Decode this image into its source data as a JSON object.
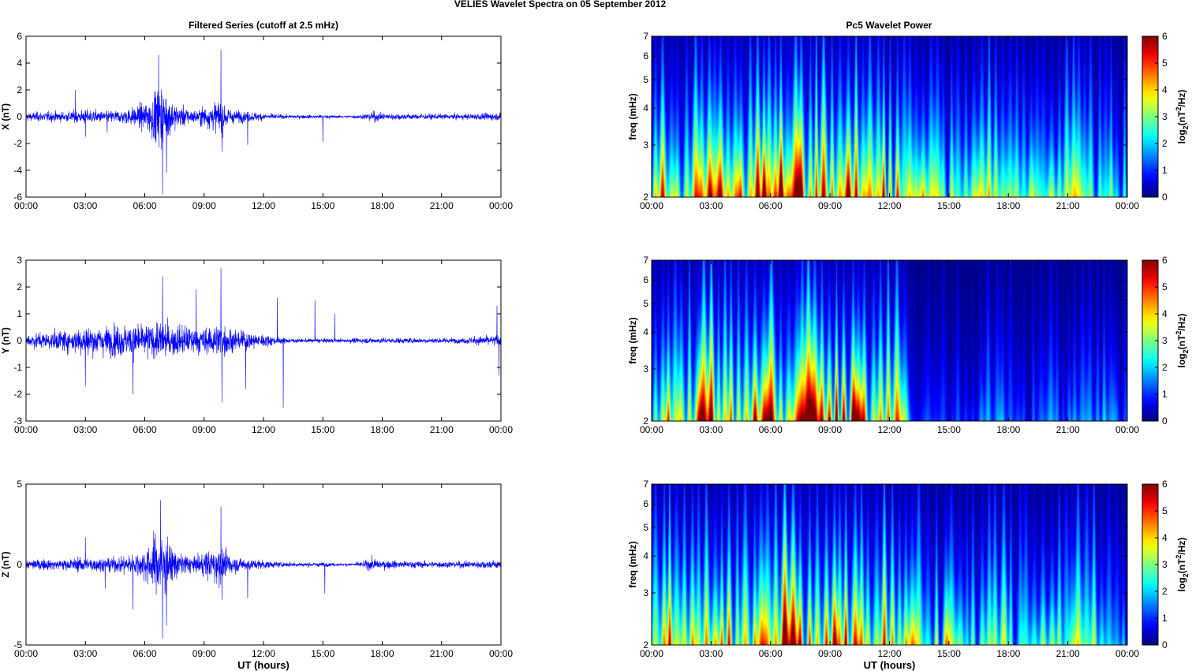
{
  "figure": {
    "title": "VELIES Wavelet Spectra on 05 September 2012",
    "left_column_title": "Filtered Series (cutoff at 2.5 mHz)",
    "right_column_title": "Pc5 Wavelet Power",
    "xlabel": "UT (hours)"
  },
  "colors": {
    "series_line": "#0000ff",
    "axes": "#000000",
    "background": "#ffffff"
  },
  "chart_data": [
    {
      "type": "line",
      "name": "x-series",
      "ylabel": "X (nT)",
      "ylim": [
        -6,
        6
      ],
      "yticks": [
        -6,
        -4,
        -2,
        0,
        2,
        4,
        6
      ],
      "xlim": [
        0,
        24
      ],
      "xticks": [
        "00:00",
        "03:00",
        "06:00",
        "09:00",
        "12:00",
        "15:00",
        "18:00",
        "21:00",
        "00:00"
      ],
      "envelope": [
        [
          0,
          0.45
        ],
        [
          1,
          0.55
        ],
        [
          2,
          0.55
        ],
        [
          3,
          0.8
        ],
        [
          4,
          0.6
        ],
        [
          5,
          0.8
        ],
        [
          6,
          1.5
        ],
        [
          6.8,
          3.5
        ],
        [
          7.5,
          1.4
        ],
        [
          8.5,
          0.7
        ],
        [
          9.8,
          1.8
        ],
        [
          10.5,
          0.7
        ],
        [
          12,
          0.4
        ],
        [
          13,
          0.2
        ],
        [
          14,
          0.2
        ],
        [
          15,
          0.2
        ],
        [
          16,
          0.1
        ],
        [
          17,
          0.25
        ],
        [
          17.5,
          0.6
        ],
        [
          18,
          0.4
        ],
        [
          20,
          0.3
        ],
        [
          22,
          0.3
        ],
        [
          23.5,
          0.4
        ],
        [
          24,
          0.4
        ]
      ],
      "spikes": [
        [
          6.7,
          4.6
        ],
        [
          6.9,
          -5.8
        ],
        [
          7.1,
          -4.2
        ],
        [
          9.85,
          5.0
        ],
        [
          9.9,
          -2.6
        ],
        [
          4.1,
          -1.2
        ],
        [
          3.0,
          -1.5
        ],
        [
          15.0,
          -1.9
        ],
        [
          2.5,
          2.0
        ],
        [
          11.2,
          -2.1
        ]
      ],
      "xlabel": ""
    },
    {
      "type": "line",
      "name": "y-series",
      "ylabel": "Y (nT)",
      "ylim": [
        -3,
        3
      ],
      "yticks": [
        -3,
        -2,
        -1,
        0,
        1,
        2,
        3
      ],
      "xlim": [
        0,
        24
      ],
      "xticks": [
        "00:00",
        "03:00",
        "06:00",
        "09:00",
        "12:00",
        "15:00",
        "18:00",
        "21:00",
        "00:00"
      ],
      "envelope": [
        [
          0,
          0.4
        ],
        [
          1,
          0.45
        ],
        [
          2,
          0.6
        ],
        [
          3,
          0.8
        ],
        [
          4,
          0.8
        ],
        [
          5,
          0.9
        ],
        [
          6,
          0.9
        ],
        [
          7,
          1.0
        ],
        [
          8,
          0.8
        ],
        [
          9,
          0.7
        ],
        [
          9.8,
          1.0
        ],
        [
          10.5,
          0.6
        ],
        [
          12,
          0.35
        ],
        [
          13,
          0.15
        ],
        [
          14,
          0.1
        ],
        [
          15,
          0.12
        ],
        [
          16,
          0.1
        ],
        [
          17,
          0.15
        ],
        [
          18,
          0.15
        ],
        [
          20,
          0.15
        ],
        [
          22,
          0.15
        ],
        [
          23.5,
          0.3
        ],
        [
          24,
          0.3
        ]
      ],
      "spikes": [
        [
          6.9,
          2.4
        ],
        [
          9.85,
          2.7
        ],
        [
          9.9,
          -2.3
        ],
        [
          8.6,
          1.9
        ],
        [
          13.0,
          -2.5
        ],
        [
          14.6,
          1.5
        ],
        [
          12.7,
          1.6
        ],
        [
          5.4,
          -2.0
        ],
        [
          3.0,
          -1.7
        ],
        [
          15.6,
          1.0
        ],
        [
          23.8,
          1.3
        ],
        [
          23.9,
          -1.3
        ],
        [
          11.1,
          -1.8
        ]
      ],
      "xlabel": ""
    },
    {
      "type": "line",
      "name": "z-series",
      "ylabel": "Z (nT)",
      "ylim": [
        -5,
        5
      ],
      "yticks": [
        -5,
        0,
        5
      ],
      "xlim": [
        0,
        24
      ],
      "xticks": [
        "00:00",
        "03:00",
        "06:00",
        "09:00",
        "12:00",
        "15:00",
        "18:00",
        "21:00",
        "00:00"
      ],
      "envelope": [
        [
          0,
          0.4
        ],
        [
          1,
          0.5
        ],
        [
          2,
          0.5
        ],
        [
          3,
          0.7
        ],
        [
          4,
          0.6
        ],
        [
          5,
          0.8
        ],
        [
          6,
          1.4
        ],
        [
          6.8,
          3.2
        ],
        [
          7.5,
          1.3
        ],
        [
          8.5,
          0.7
        ],
        [
          9.8,
          1.8
        ],
        [
          10.5,
          0.7
        ],
        [
          12,
          0.4
        ],
        [
          13,
          0.2
        ],
        [
          14,
          0.2
        ],
        [
          15,
          0.2
        ],
        [
          16,
          0.1
        ],
        [
          17,
          0.25
        ],
        [
          17.5,
          0.6
        ],
        [
          18,
          0.4
        ],
        [
          20,
          0.3
        ],
        [
          22,
          0.3
        ],
        [
          23.5,
          0.4
        ],
        [
          24,
          0.4
        ]
      ],
      "spikes": [
        [
          6.8,
          4.0
        ],
        [
          6.9,
          -4.6
        ],
        [
          7.1,
          -3.8
        ],
        [
          9.85,
          3.6
        ],
        [
          9.9,
          -2.2
        ],
        [
          3.0,
          1.7
        ],
        [
          4.0,
          -1.5
        ],
        [
          5.4,
          -2.8
        ],
        [
          15.1,
          -1.8
        ],
        [
          11.2,
          -2.1
        ]
      ],
      "xlabel": "UT (hours)"
    },
    {
      "type": "heatmap",
      "name": "x-wavelet",
      "ylabel": "freq (mHz)",
      "yscale": "log",
      "ylim": [
        2,
        7
      ],
      "yticks": [
        "2",
        "3",
        "4",
        "5",
        "6",
        "7"
      ],
      "xlim": [
        0,
        24
      ],
      "xticks": [
        "00:00",
        "03:00",
        "06:00",
        "09:00",
        "12:00",
        "15:00",
        "18:00",
        "21:00",
        "00:00"
      ],
      "colorbar_label": "log2(nT2/Hz)",
      "colorbar_ticks": [
        "0",
        "1",
        "2",
        "3",
        "4",
        "5",
        "6"
      ],
      "clim": [
        0,
        6
      ],
      "activity": [
        [
          0,
          4.5
        ],
        [
          1,
          4.5
        ],
        [
          2,
          4.0
        ],
        [
          3,
          4.5
        ],
        [
          4,
          5.0
        ],
        [
          5,
          5.0
        ],
        [
          6,
          5.5
        ],
        [
          7,
          6.0
        ],
        [
          8,
          5.2
        ],
        [
          9,
          5.5
        ],
        [
          10,
          5.5
        ],
        [
          11,
          4.8
        ],
        [
          12,
          4.5
        ],
        [
          13,
          3.8
        ],
        [
          14,
          3.0
        ],
        [
          15,
          3.0
        ],
        [
          16,
          2.5
        ],
        [
          17,
          3.4
        ],
        [
          18,
          3.2
        ],
        [
          19,
          2.8
        ],
        [
          20,
          2.8
        ],
        [
          21,
          3.2
        ],
        [
          22,
          3.0
        ],
        [
          23,
          2.8
        ],
        [
          24,
          2.0
        ]
      ],
      "xlabel": ""
    },
    {
      "type": "heatmap",
      "name": "y-wavelet",
      "ylabel": "freq (mHz)",
      "yscale": "log",
      "ylim": [
        2,
        7
      ],
      "yticks": [
        "2",
        "3",
        "4",
        "5",
        "6",
        "7"
      ],
      "xlim": [
        0,
        24
      ],
      "xticks": [
        "00:00",
        "03:00",
        "06:00",
        "09:00",
        "12:00",
        "15:00",
        "18:00",
        "21:00",
        "00:00"
      ],
      "colorbar_label": "log2(nT2/Hz)",
      "colorbar_ticks": [
        "0",
        "1",
        "2",
        "3",
        "4",
        "5",
        "6"
      ],
      "clim": [
        0,
        6
      ],
      "activity": [
        [
          0,
          4.3
        ],
        [
          1,
          4.5
        ],
        [
          2,
          4.3
        ],
        [
          3,
          5.0
        ],
        [
          4,
          5.5
        ],
        [
          5,
          5.5
        ],
        [
          6,
          5.3
        ],
        [
          7,
          5.5
        ],
        [
          8,
          5.0
        ],
        [
          9,
          5.5
        ],
        [
          10,
          5.2
        ],
        [
          11,
          4.5
        ],
        [
          12,
          4.2
        ],
        [
          12.8,
          4.0
        ],
        [
          13.2,
          1.0
        ],
        [
          14,
          1.0
        ],
        [
          15,
          1.2
        ],
        [
          16,
          1.0
        ],
        [
          17,
          1.8
        ],
        [
          18,
          1.6
        ],
        [
          19,
          1.4
        ],
        [
          20,
          1.5
        ],
        [
          21,
          1.3
        ],
        [
          22,
          1.6
        ],
        [
          23,
          1.6
        ],
        [
          24,
          1.2
        ]
      ],
      "xlabel": ""
    },
    {
      "type": "heatmap",
      "name": "z-wavelet",
      "ylabel": "freq (mHz)",
      "yscale": "log",
      "ylim": [
        2,
        7
      ],
      "yticks": [
        "2",
        "3",
        "4",
        "5",
        "6",
        "7"
      ],
      "xlim": [
        0,
        24
      ],
      "xticks": [
        "00:00",
        "03:00",
        "06:00",
        "09:00",
        "12:00",
        "15:00",
        "18:00",
        "21:00",
        "00:00"
      ],
      "colorbar_label": "log2(nT2/Hz)",
      "colorbar_ticks": [
        "0",
        "1",
        "2",
        "3",
        "4",
        "5",
        "6"
      ],
      "clim": [
        0,
        6
      ],
      "activity": [
        [
          0,
          4.5
        ],
        [
          1,
          4.5
        ],
        [
          2,
          4.0
        ],
        [
          3,
          4.5
        ],
        [
          4,
          5.0
        ],
        [
          5,
          5.0
        ],
        [
          6,
          5.5
        ],
        [
          7,
          6.0
        ],
        [
          8,
          5.2
        ],
        [
          9,
          5.5
        ],
        [
          10,
          5.5
        ],
        [
          11,
          4.8
        ],
        [
          12,
          4.5
        ],
        [
          13,
          3.8
        ],
        [
          14,
          3.0
        ],
        [
          15,
          3.0
        ],
        [
          16,
          2.5
        ],
        [
          17,
          3.4
        ],
        [
          18,
          3.2
        ],
        [
          19,
          2.8
        ],
        [
          20,
          2.8
        ],
        [
          21,
          3.2
        ],
        [
          22,
          3.0
        ],
        [
          23,
          2.8
        ],
        [
          24,
          2.0
        ]
      ],
      "xlabel": "UT (hours)"
    }
  ]
}
